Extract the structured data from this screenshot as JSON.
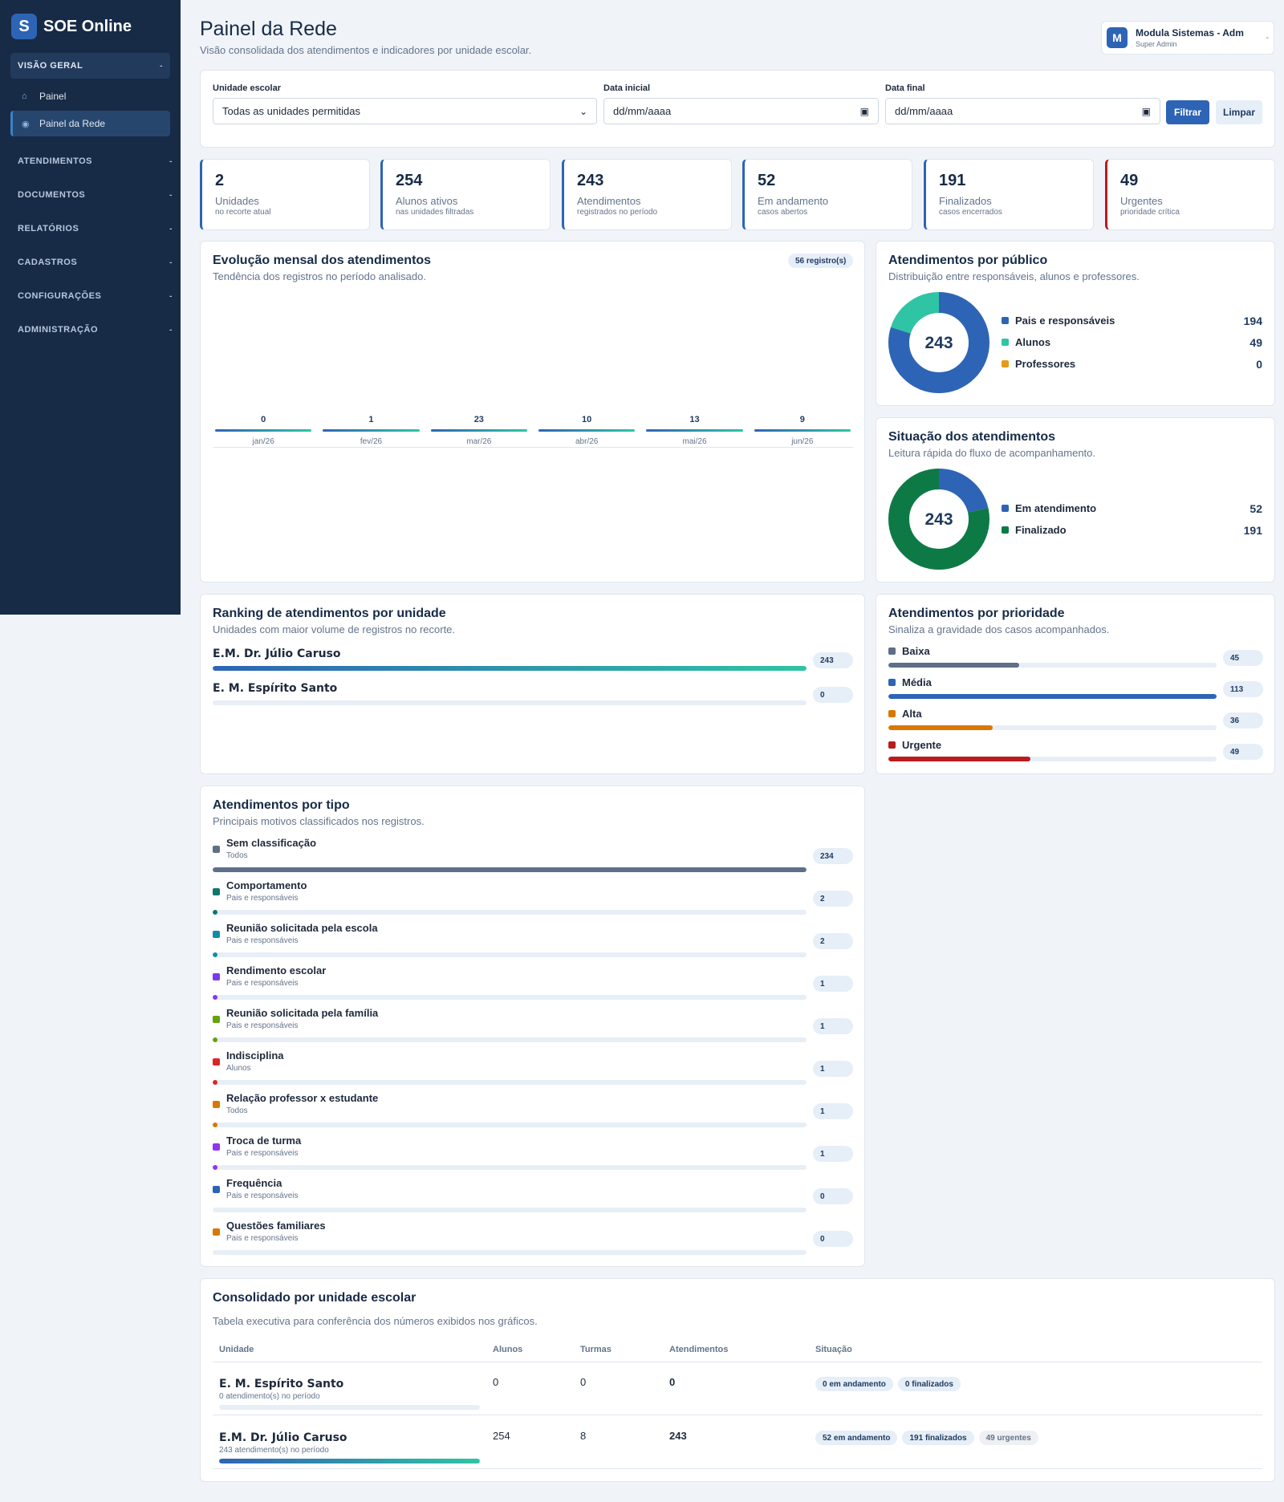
{
  "sidebar": {
    "brand": "SOE Online",
    "brand_initial": "S",
    "sections": [
      {
        "label": "VISÃO GERAL",
        "caret": "-"
      },
      {
        "label": "ATENDIMENTOS",
        "caret": "-"
      },
      {
        "label": "DOCUMENTOS",
        "caret": "-"
      },
      {
        "label": "RELATÓRIOS",
        "caret": "-"
      },
      {
        "label": "CADASTROS",
        "caret": "-"
      },
      {
        "label": "CONFIGURAÇÕES",
        "caret": "-"
      },
      {
        "label": "ADMINISTRAÇÃO",
        "caret": "-"
      }
    ],
    "items": [
      {
        "label": "Painel",
        "icon": "home-icon"
      },
      {
        "label": "Painel da Rede",
        "icon": "dot-icon"
      }
    ]
  },
  "header": {
    "title": "Painel da Rede",
    "subtitle": "Visão consolidada dos atendimentos e indicadores por unidade escolar."
  },
  "user": {
    "initial": "M",
    "name": "Modula Sistemas - Adm",
    "role": "Super Admin",
    "caret": "-"
  },
  "filters": {
    "unit_label": "Unidade escolar",
    "unit_value": "Todas as unidades permitidas",
    "start_label": "Data inicial",
    "start_value": "dd/mm/aaaa",
    "end_label": "Data final",
    "end_value": "dd/mm/aaaa",
    "filter_button": "Filtrar",
    "clear_button": "Limpar"
  },
  "kpis": [
    {
      "value": "2",
      "label": "Unidades",
      "sub": "no recorte atual",
      "color": "#2e64b5"
    },
    {
      "value": "254",
      "label": "Alunos ativos",
      "sub": "nas unidades filtradas",
      "color": "#2e64b5"
    },
    {
      "value": "243",
      "label": "Atendimentos",
      "sub": "registrados no período",
      "color": "#2e64b5"
    },
    {
      "value": "52",
      "label": "Em andamento",
      "sub": "casos abertos",
      "color": "#2e64b5"
    },
    {
      "value": "191",
      "label": "Finalizados",
      "sub": "casos encerrados",
      "color": "#2e64b5"
    },
    {
      "value": "49",
      "label": "Urgentes",
      "sub": "prioridade crítica",
      "color": "#b91c1c"
    }
  ],
  "monthly": {
    "title": "Evolução mensal dos atendimentos",
    "subtitle": "Tendência dos registros no período analisado.",
    "badge": "56 registro(s)",
    "chart_data": {
      "type": "bar",
      "categories": [
        "jan/26",
        "fev/26",
        "mar/26",
        "abr/26",
        "mai/26",
        "jun/26"
      ],
      "values": [
        0,
        1,
        23,
        10,
        13,
        9
      ]
    }
  },
  "public": {
    "title": "Atendimentos por público",
    "subtitle": "Distribuição entre responsáveis, alunos e professores.",
    "total": "243",
    "items": [
      {
        "label": "Pais e responsáveis",
        "value": 194,
        "color": "#2e64b5"
      },
      {
        "label": "Alunos",
        "value": 49,
        "color": "#2ec4a4"
      },
      {
        "label": "Professores",
        "value": 0,
        "color": "#e69a1a"
      }
    ]
  },
  "status": {
    "title": "Situação dos atendimentos",
    "subtitle": "Leitura rápida do fluxo de acompanhamento.",
    "total": "243",
    "items": [
      {
        "label": "Em atendimento",
        "value": 52,
        "color": "#2e64b5"
      },
      {
        "label": "Finalizado",
        "value": 191,
        "color": "#0d7a45"
      }
    ]
  },
  "ranking": {
    "title": "Ranking de atendimentos por unidade",
    "subtitle": "Unidades com maior volume de registros no recorte.",
    "items": [
      {
        "label": "E.M. Dr. Júlio Caruso",
        "value": 243
      },
      {
        "label": "E. M. Espírito Santo",
        "value": 0
      }
    ]
  },
  "priority": {
    "title": "Atendimentos por prioridade",
    "subtitle": "Sinaliza a gravidade dos casos acompanhados.",
    "items": [
      {
        "label": "Baixa",
        "value": 45,
        "color": "#5f6f88"
      },
      {
        "label": "Média",
        "value": 113,
        "color": "#2e64b5"
      },
      {
        "label": "Alta",
        "value": 36,
        "color": "#d97706"
      },
      {
        "label": "Urgente",
        "value": 49,
        "color": "#b91c1c"
      }
    ]
  },
  "types": {
    "title": "Atendimentos por tipo",
    "subtitle": "Principais motivos classificados nos registros.",
    "items": [
      {
        "label": "Sem classificação",
        "sub": "Todos",
        "value": 234,
        "color": "#5f6f88"
      },
      {
        "label": "Comportamento",
        "sub": "Pais e responsáveis",
        "value": 2,
        "color": "#0f766e"
      },
      {
        "label": "Reunião solicitada pela escola",
        "sub": "Pais e responsáveis",
        "value": 2,
        "color": "#0e8fa6"
      },
      {
        "label": "Rendimento escolar",
        "sub": "Pais e responsáveis",
        "value": 1,
        "color": "#7c3aed"
      },
      {
        "label": "Reunião solicitada pela família",
        "sub": "Pais e responsáveis",
        "value": 1,
        "color": "#65a30d"
      },
      {
        "label": "Indisciplina",
        "sub": "Alunos",
        "value": 1,
        "color": "#dc2626"
      },
      {
        "label": "Relação professor x estudante",
        "sub": "Todos",
        "value": 1,
        "color": "#d97706"
      },
      {
        "label": "Troca de turma",
        "sub": "Pais e responsáveis",
        "value": 1,
        "color": "#9333ea"
      },
      {
        "label": "Frequência",
        "sub": "Pais e responsáveis",
        "value": 0,
        "color": "#2e64b5"
      },
      {
        "label": "Questões familiares",
        "sub": "Pais e responsáveis",
        "value": 0,
        "color": "#d97706"
      }
    ]
  },
  "table": {
    "title": "Consolidado por unidade escolar",
    "subtitle": "Tabela executiva para conferência dos números exibidos nos gráficos.",
    "headers": [
      "Unidade",
      "Alunos",
      "Turmas",
      "Atendimentos",
      "Situação"
    ],
    "rows": [
      {
        "unit": "E. M. Espírito Santo",
        "sub": "0 atendimento(s) no período",
        "alunos": "0",
        "turmas": "0",
        "atend": "0",
        "progress": 0,
        "pills": [
          "0 em andamento",
          "0 finalizados"
        ]
      },
      {
        "unit": "E.M. Dr. Júlio Caruso",
        "sub": "243 atendimento(s) no período",
        "alunos": "254",
        "turmas": "8",
        "atend": "243",
        "progress": 1,
        "pills": [
          "52 em andamento",
          "191 finalizados",
          "49 urgentes"
        ]
      }
    ]
  }
}
